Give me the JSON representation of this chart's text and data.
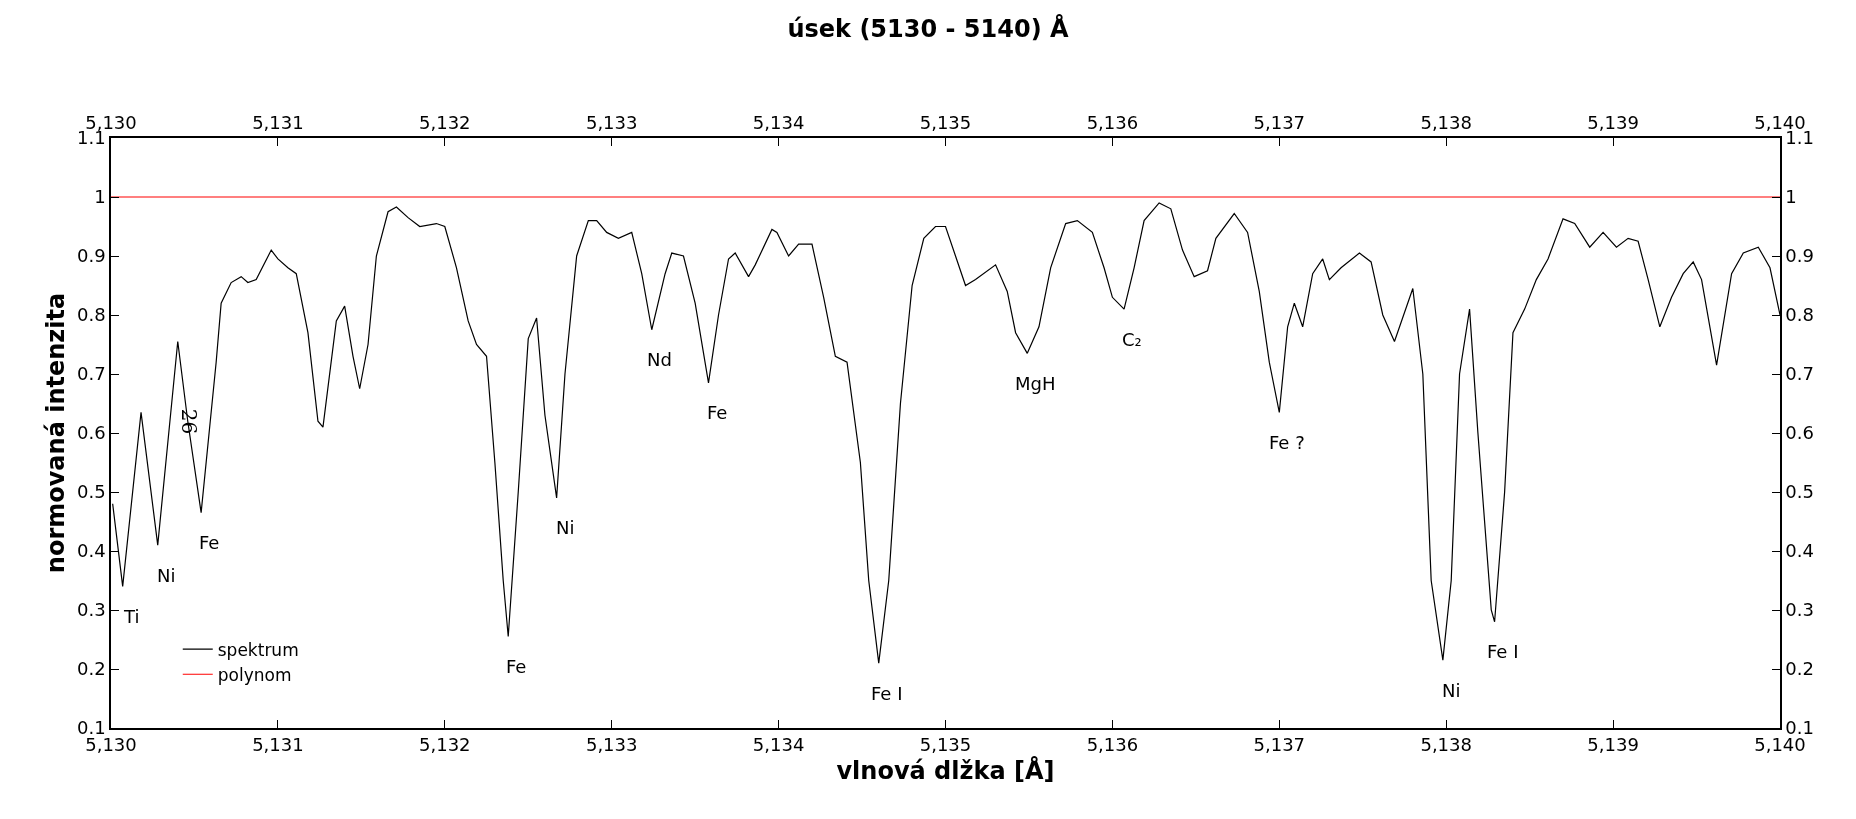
{
  "chart_data": {
    "type": "line",
    "title": "úsek (5130 - 5140) Å",
    "xlabel": "vlnová dlžka [Å]",
    "ylabel": "normovaná intenzita",
    "series": [
      {
        "name": "spektrum",
        "color": "#000000",
        "x": [
          5130.01,
          5130.07,
          5130.18,
          5130.28,
          5130.4,
          5130.46,
          5130.54,
          5130.63,
          5130.66,
          5130.72,
          5130.78,
          5130.82,
          5130.87,
          5130.96,
          5131.0,
          5131.06,
          5131.11,
          5131.18,
          5131.24,
          5131.27,
          5131.35,
          5131.4,
          5131.45,
          5131.49,
          5131.54,
          5131.59,
          5131.66,
          5131.71,
          5131.78,
          5131.85,
          5131.95,
          5132.0,
          5132.07,
          5132.14,
          5132.19,
          5132.25,
          5132.3,
          5132.35,
          5132.38,
          5132.44,
          5132.5,
          5132.55,
          5132.6,
          5132.67,
          5132.72,
          5132.79,
          5132.86,
          5132.91,
          5132.97,
          5133.04,
          5133.12,
          5133.18,
          5133.24,
          5133.32,
          5133.36,
          5133.43,
          5133.5,
          5133.58,
          5133.64,
          5133.7,
          5133.74,
          5133.82,
          5133.86,
          5133.96,
          5133.99,
          5134.06,
          5134.12,
          5134.2,
          5134.27,
          5134.34,
          5134.41,
          5134.49,
          5134.54,
          5134.6,
          5134.66,
          5134.73,
          5134.8,
          5134.87,
          5134.94,
          5135.0,
          5135.06,
          5135.12,
          5135.18,
          5135.3,
          5135.37,
          5135.42,
          5135.49,
          5135.56,
          5135.63,
          5135.72,
          5135.79,
          5135.88,
          5135.95,
          5136.0,
          5136.07,
          5136.13,
          5136.19,
          5136.28,
          5136.35,
          5136.42,
          5136.49,
          5136.57,
          5136.62,
          5136.73,
          5136.81,
          5136.88,
          5136.94,
          5137.0,
          5137.05,
          5137.09,
          5137.14,
          5137.2,
          5137.26,
          5137.3,
          5137.37,
          5137.48,
          5137.55,
          5137.62,
          5137.69,
          5137.8,
          5137.86,
          5137.91,
          5137.98,
          5138.03,
          5138.08,
          5138.14,
          5138.19,
          5138.27,
          5138.29,
          5138.35,
          5138.4,
          5138.47,
          5138.54,
          5138.61,
          5138.7,
          5138.77,
          5138.86,
          5138.94,
          5139.02,
          5139.09,
          5139.15,
          5139.21,
          5139.28,
          5139.35,
          5139.42,
          5139.48,
          5139.53,
          5139.62,
          5139.71,
          5139.78,
          5139.87,
          5139.94,
          5140.0
        ],
        "values": [
          0.48,
          0.34,
          0.635,
          0.41,
          0.755,
          0.62,
          0.465,
          0.72,
          0.82,
          0.855,
          0.865,
          0.855,
          0.86,
          0.91,
          0.895,
          0.88,
          0.87,
          0.77,
          0.62,
          0.61,
          0.79,
          0.815,
          0.73,
          0.675,
          0.75,
          0.9,
          0.975,
          0.983,
          0.965,
          0.95,
          0.955,
          0.95,
          0.88,
          0.79,
          0.75,
          0.73,
          0.55,
          0.35,
          0.255,
          0.5,
          0.76,
          0.795,
          0.63,
          0.49,
          0.7,
          0.9,
          0.96,
          0.96,
          0.94,
          0.93,
          0.94,
          0.87,
          0.775,
          0.87,
          0.905,
          0.9,
          0.82,
          0.685,
          0.8,
          0.895,
          0.905,
          0.865,
          0.885,
          0.945,
          0.94,
          0.9,
          0.92,
          0.92,
          0.83,
          0.73,
          0.72,
          0.55,
          0.35,
          0.21,
          0.35,
          0.65,
          0.85,
          0.93,
          0.95,
          0.95,
          0.9,
          0.85,
          0.86,
          0.885,
          0.84,
          0.77,
          0.735,
          0.78,
          0.88,
          0.955,
          0.96,
          0.94,
          0.88,
          0.83,
          0.81,
          0.88,
          0.96,
          0.99,
          0.98,
          0.91,
          0.865,
          0.875,
          0.93,
          0.972,
          0.94,
          0.84,
          0.72,
          0.635,
          0.78,
          0.82,
          0.78,
          0.87,
          0.895,
          0.86,
          0.88,
          0.905,
          0.89,
          0.8,
          0.755,
          0.845,
          0.7,
          0.35,
          0.215,
          0.35,
          0.7,
          0.81,
          0.6,
          0.3,
          0.28,
          0.5,
          0.77,
          0.81,
          0.86,
          0.895,
          0.963,
          0.955,
          0.915,
          0.94,
          0.915,
          0.93,
          0.925,
          0.86,
          0.78,
          0.83,
          0.87,
          0.89,
          0.86,
          0.715,
          0.87,
          0.905,
          0.915,
          0.88,
          0.8
        ]
      },
      {
        "name": "polynom",
        "color": "#ff0000",
        "x": [
          5130,
          5140
        ],
        "values": [
          1,
          1
        ]
      }
    ],
    "annotations": [
      {
        "text": "Ti",
        "x": 5130.07,
        "y": 0.34
      },
      {
        "text": "Ni",
        "x": 5130.28,
        "y": 0.41
      },
      "26",
      {
        "text": "Fe",
        "x": 5130.54,
        "y": 0.465
      },
      {
        "text": "Fe",
        "x": 5132.38,
        "y": 0.255
      },
      {
        "text": "Ni",
        "x": 5132.67,
        "y": 0.49
      },
      {
        "text": "Nd",
        "x": 5133.24,
        "y": 0.775
      },
      {
        "text": "Fe",
        "x": 5133.58,
        "y": 0.685
      },
      {
        "text": "Fe I",
        "x": 5134.6,
        "y": 0.21
      },
      {
        "text": "MgH",
        "x": 5135.49,
        "y": 0.735
      },
      {
        "text": "C₂",
        "x": 5136.07,
        "y": 0.81
      },
      {
        "text": "Fe ?",
        "x": 5137.0,
        "y": 0.635
      },
      {
        "text": "Ni",
        "x": 5137.98,
        "y": 0.215
      },
      {
        "text": "Fe I",
        "x": 5138.29,
        "y": 0.28
      }
    ],
    "xlim": [
      5130,
      5140
    ],
    "xticks": [
      {
        "value": 5130,
        "label": "5,130"
      },
      {
        "value": 5131,
        "label": "5,131"
      },
      {
        "value": 5132,
        "label": "5,132"
      },
      {
        "value": 5133,
        "label": "5,133"
      },
      {
        "value": 5134,
        "label": "5,134"
      },
      {
        "value": 5135,
        "label": "5,135"
      },
      {
        "value": 5136,
        "label": "5,136"
      },
      {
        "value": 5137,
        "label": "5,137"
      },
      {
        "value": 5138,
        "label": "5,138"
      },
      {
        "value": 5139,
        "label": "5,139"
      },
      {
        "value": 5140,
        "label": "5,140"
      }
    ],
    "x2lim": [
      5130,
      5140
    ],
    "x2ticks": [
      {
        "value": 5130,
        "label": "5,130"
      },
      {
        "value": 5131,
        "label": "5,131"
      },
      {
        "value": 5132,
        "label": "5,132"
      },
      {
        "value": 5133,
        "label": "5,133"
      },
      {
        "value": 5134,
        "label": "5,134"
      },
      {
        "value": 5135,
        "label": "5,135"
      },
      {
        "value": 5136,
        "label": "5,136"
      },
      {
        "value": 5137,
        "label": "5,137"
      },
      {
        "value": 5138,
        "label": "5,138"
      },
      {
        "value": 5139,
        "label": "5,139"
      },
      {
        "value": 5140,
        "label": "5,140"
      }
    ],
    "ylim": [
      0.1,
      1.1
    ],
    "yticks": [
      0.1,
      0.2,
      0.3,
      0.4,
      0.5,
      0.6,
      0.7,
      0.8,
      0.9,
      1,
      1.1
    ],
    "y2lim": [
      0.1,
      1.1
    ],
    "y2ticks": [
      0.1,
      0.2,
      0.3,
      0.4,
      0.5,
      0.6,
      0.7,
      0.8,
      0.9,
      1,
      1.1
    ],
    "legend": "bottom left",
    "marker": "none",
    "line_style": "solid"
  }
}
